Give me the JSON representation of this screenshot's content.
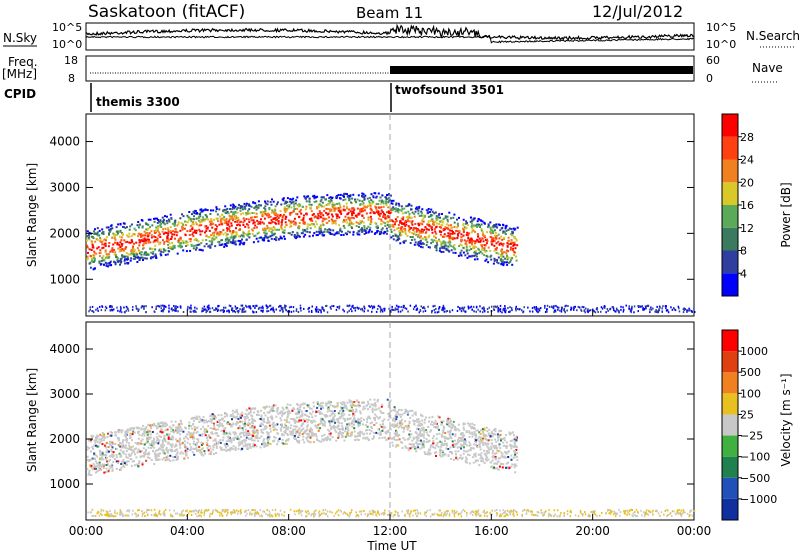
{
  "header": {
    "station": "Saskatoon (fitACF)",
    "beam": "Beam 11",
    "date": "12/Jul/2012"
  },
  "chart_data": [
    {
      "type": "line",
      "panel": "noise",
      "ylabel": "N.Sky",
      "ylabel_right": "N.Search",
      "yticks_left": [
        "10^5",
        "10^0"
      ],
      "yticks_right": [
        "10^5",
        "10^0"
      ]
    },
    {
      "type": "line",
      "panel": "frequency",
      "ylabel": "Freq.",
      "yunit": "[MHz]",
      "ylabel_right": "Nave",
      "yticks_left": [
        "18",
        "8"
      ],
      "yticks_right": [
        "60",
        "0"
      ]
    },
    {
      "type": "heatmap",
      "panel": "cpid",
      "label": "CPID",
      "segments": [
        {
          "name": "themis 3300",
          "start": 0,
          "end": 12
        },
        {
          "name": "twofsound 3501",
          "start": 12,
          "end": 24
        }
      ]
    },
    {
      "type": "heatmap",
      "panel": "power",
      "ylabel": "Slant Range [km]",
      "ylim": [
        200,
        4600
      ],
      "yticks": [
        1000,
        2000,
        3000,
        4000
      ],
      "colorbar": {
        "label": "Power [dB]",
        "ticks": [
          "4",
          "8",
          "12",
          "16",
          "20",
          "24",
          "28"
        ],
        "colors": [
          "#0000ff",
          "#2e3fa0",
          "#3a7a5e",
          "#5aaa5a",
          "#d8c828",
          "#f08020",
          "#ff4010",
          "#ff0000"
        ]
      },
      "bands": [
        {
          "range_km": [
            1000,
            2700
          ],
          "note": "main arc"
        },
        {
          "range_km": [
            300,
            600
          ],
          "note": "near range"
        }
      ]
    },
    {
      "type": "heatmap",
      "panel": "velocity",
      "ylabel": "Slant Range [km]",
      "xlabel": "Time UT",
      "ylim": [
        200,
        4600
      ],
      "yticks": [
        1000,
        2000,
        3000,
        4000
      ],
      "xticks": [
        "00:00",
        "04:00",
        "08:00",
        "12:00",
        "16:00",
        "20:00",
        "00:00"
      ],
      "colorbar": {
        "label": "Velocity [m s⁻¹]",
        "ticks": [
          "1000",
          "500",
          "100",
          "25",
          "−25",
          "−100",
          "−500",
          "−1000"
        ],
        "colors": [
          "#1030a0",
          "#2050b8",
          "#208050",
          "#40b040",
          "#c8c8c8",
          "#e8c020",
          "#f08020",
          "#e04010",
          "#ff0000"
        ]
      }
    }
  ]
}
